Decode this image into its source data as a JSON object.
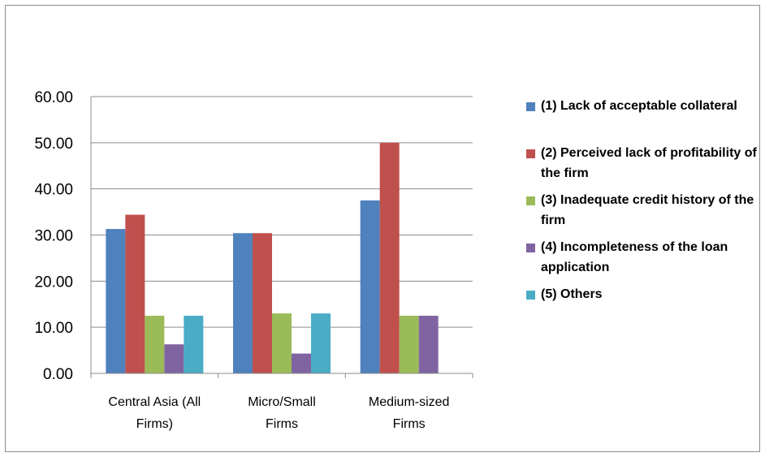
{
  "chart_data": {
    "type": "bar",
    "title": "",
    "xlabel": "",
    "ylabel": "",
    "ylim": [
      0,
      60
    ],
    "yticks": [
      "0.00",
      "10.00",
      "20.00",
      "30.00",
      "40.00",
      "50.00",
      "60.00"
    ],
    "grid": true,
    "legend_position": "right",
    "categories": [
      [
        "Central Asia (All",
        "Firms)"
      ],
      [
        "Micro/Small",
        "Firms"
      ],
      [
        "Medium-sized",
        "Firms"
      ]
    ],
    "series": [
      {
        "name": "(1) Lack of acceptable collateral",
        "color": "#4f81bd",
        "values": [
          31.3,
          30.4,
          37.5
        ]
      },
      {
        "name": "(2) Perceived lack of profitability of the firm",
        "color": "#c0504d",
        "values": [
          34.4,
          30.4,
          50.0
        ]
      },
      {
        "name": "(3) Inadequate credit history of the firm",
        "color": "#9bbb59",
        "values": [
          12.5,
          13.0,
          12.5
        ]
      },
      {
        "name": "(4) Incompleteness of the loan application",
        "color": "#8064a2",
        "values": [
          6.3,
          4.3,
          12.5
        ]
      },
      {
        "name": "(5) Others",
        "color": "#4bacc6",
        "values": [
          12.5,
          13.0,
          0
        ]
      }
    ]
  }
}
